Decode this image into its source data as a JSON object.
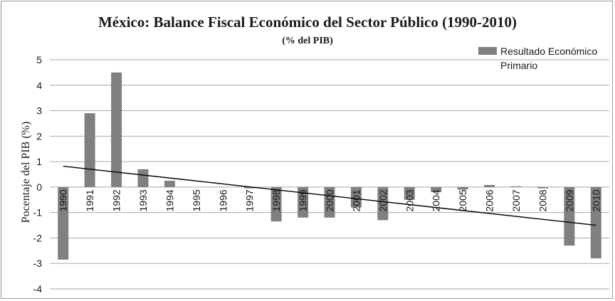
{
  "chart_data": {
    "type": "bar",
    "title": "México: Balance Fiscal Económico del Sector Público (1990-2010)",
    "subtitle": "(% del PIB)",
    "ylabel": "Pocentaje del PIB (%)",
    "ylim": [
      -4,
      5
    ],
    "yticks": [
      "5",
      "4",
      "3",
      "2",
      "1",
      "0",
      "-1",
      "-2",
      "-3",
      "-4"
    ],
    "grid": true,
    "legend_position": "top-right",
    "categories": [
      "1990",
      "1991",
      "1992",
      "1993",
      "1994",
      "1995",
      "1996",
      "1997",
      "1998",
      "1999",
      "2000",
      "2001",
      "2002",
      "2003",
      "2004",
      "2005",
      "2006",
      "2007",
      "2008",
      "2009",
      "2010"
    ],
    "series": [
      {
        "name": "Resultado Económico Primario",
        "color": "#808080",
        "values": [
          -2.85,
          2.9,
          4.5,
          0.7,
          0.25,
          0.0,
          0.0,
          -0.05,
          -1.35,
          -1.2,
          -1.2,
          -0.8,
          -1.3,
          -0.5,
          -0.2,
          -0.1,
          0.08,
          0.03,
          -0.05,
          -2.3,
          -2.8
        ]
      }
    ],
    "trendline": {
      "type": "linear",
      "color": "#000000",
      "start": {
        "x": "1990",
        "y": 0.82
      },
      "end": {
        "x": "2010",
        "y": -1.5
      }
    }
  }
}
